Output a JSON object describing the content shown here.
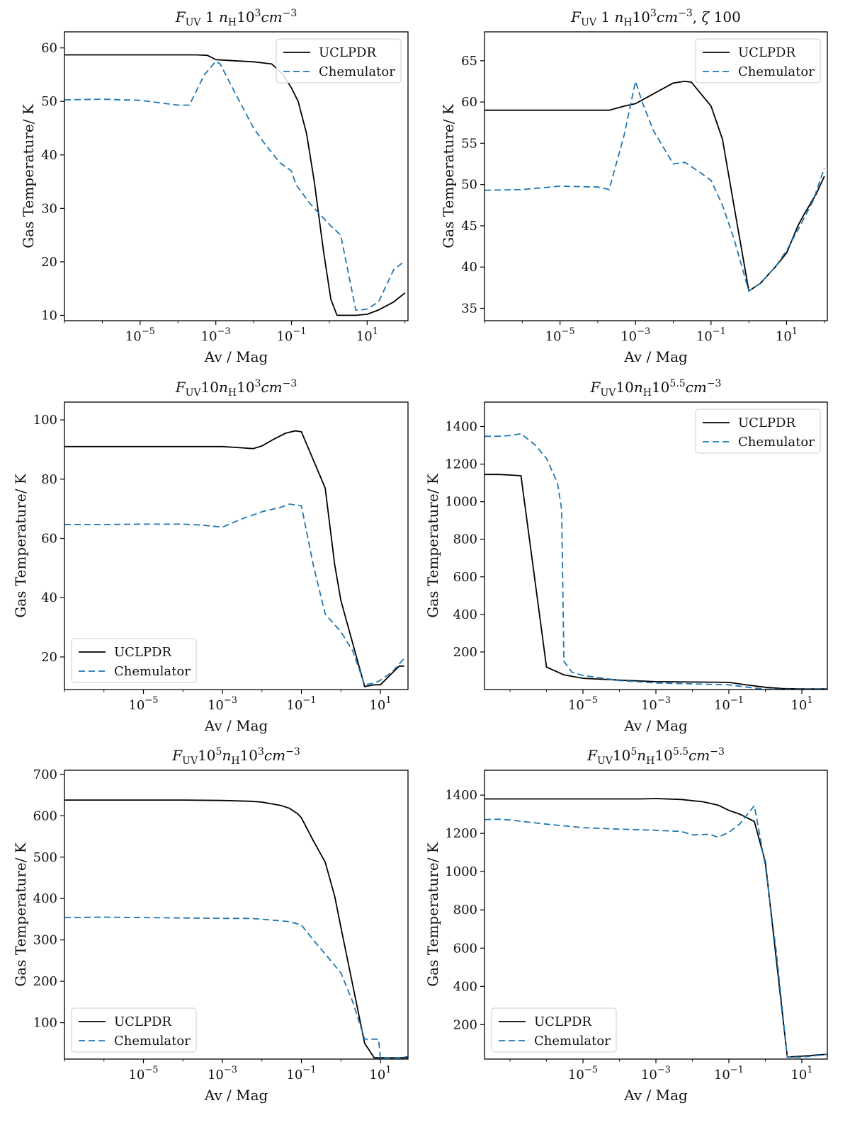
{
  "chart_data": [
    {
      "type": "line",
      "title_parts": [
        [
          "F",
          "i"
        ],
        [
          "UV",
          "sub"
        ],
        [
          " 1 ",
          "n"
        ],
        [
          "n",
          "i"
        ],
        [
          "H",
          "sub"
        ],
        [
          "10",
          "n"
        ],
        [
          "3",
          "sup"
        ],
        [
          "cm",
          "i"
        ],
        [
          "−3",
          "sup"
        ]
      ],
      "xlabel": "Av / Mag",
      "ylabel": "Gas Temperature/ K",
      "xscale": "log",
      "xlim": [
        1e-07,
        120
      ],
      "ylim": [
        9,
        63
      ],
      "xticks": [
        -5,
        -3,
        -1,
        1
      ],
      "yticks": [
        10,
        20,
        30,
        40,
        50,
        60
      ],
      "legend": "top-right",
      "series": [
        {
          "name": "UCLPDR",
          "x": [
            1e-07,
            1e-05,
            0.0001,
            0.0003,
            0.0006,
            0.001,
            0.003,
            0.01,
            0.03,
            0.06,
            0.1,
            0.15,
            0.25,
            0.4,
            0.7,
            1.1,
            1.6,
            2,
            5,
            10,
            20,
            50,
            100
          ],
          "y": [
            58.7,
            58.7,
            58.7,
            58.7,
            58.6,
            57.8,
            57.6,
            57.4,
            57,
            55,
            52.5,
            50,
            44,
            35,
            22,
            13,
            10,
            10,
            10,
            10.2,
            11,
            12.5,
            14.2
          ]
        },
        {
          "name": "Chemulator",
          "x": [
            1e-07,
            1e-06,
            1e-05,
            0.0001,
            0.0002,
            0.0005,
            0.001,
            0.0013,
            0.003,
            0.01,
            0.02,
            0.05,
            0.1,
            0.13,
            0.3,
            1,
            2,
            5,
            7,
            10,
            20,
            50,
            100
          ],
          "y": [
            50.3,
            50.4,
            50.2,
            49.3,
            49.3,
            55,
            57.5,
            57,
            52,
            45,
            42,
            38.5,
            37,
            34.5,
            31,
            27,
            25,
            11,
            11,
            11.2,
            12.5,
            18.5,
            20.2
          ]
        }
      ]
    },
    {
      "type": "line",
      "title_parts": [
        [
          "F",
          "i"
        ],
        [
          "UV",
          "sub"
        ],
        [
          " 1 ",
          "n"
        ],
        [
          "n",
          "i"
        ],
        [
          "H",
          "sub"
        ],
        [
          "10",
          "n"
        ],
        [
          "3",
          "sup"
        ],
        [
          "cm",
          "i"
        ],
        [
          "−3",
          "sup"
        ],
        [
          ", ",
          "n"
        ],
        [
          "ζ",
          "i"
        ],
        [
          " 100",
          "n"
        ]
      ],
      "xlabel": "Av / Mag",
      "ylabel": "Gas Temperature/ K",
      "xscale": "log",
      "xlim": [
        1e-07,
        120
      ],
      "ylim": [
        33.5,
        68.5
      ],
      "xticks": [
        -5,
        -3,
        -1,
        1
      ],
      "yticks": [
        35,
        40,
        45,
        50,
        55,
        60,
        65
      ],
      "legend": "top-right",
      "series": [
        {
          "name": "UCLPDR",
          "x": [
            1e-07,
            1e-05,
            0.0001,
            0.0002,
            0.0005,
            0.001,
            0.003,
            0.01,
            0.02,
            0.03,
            0.1,
            0.2,
            0.5,
            1,
            2,
            5,
            10,
            20,
            30,
            60,
            100
          ],
          "y": [
            59,
            59,
            59,
            59,
            59.5,
            59.8,
            61,
            62.3,
            62.5,
            62.4,
            59.5,
            55.5,
            45,
            37.1,
            38,
            40,
            41.7,
            45,
            46.5,
            48.8,
            51
          ]
        },
        {
          "name": "Chemulator",
          "x": [
            1e-07,
            1e-06,
            1e-05,
            0.0001,
            0.0002,
            0.0005,
            0.001,
            0.0015,
            0.003,
            0.01,
            0.02,
            0.05,
            0.1,
            0.2,
            0.4,
            1,
            2,
            5,
            10,
            20,
            50,
            100
          ],
          "y": [
            49.3,
            49.4,
            49.8,
            49.7,
            49.4,
            56,
            62.5,
            60,
            56.5,
            52.5,
            52.7,
            51.5,
            50.5,
            47.5,
            43.5,
            37.1,
            38,
            40,
            42,
            44.5,
            48,
            52
          ]
        }
      ]
    },
    {
      "type": "line",
      "title_parts": [
        [
          "F",
          "i"
        ],
        [
          "UV",
          "sub"
        ],
        [
          "10",
          "n"
        ],
        [
          "n",
          "i"
        ],
        [
          "H",
          "sub"
        ],
        [
          "10",
          "n"
        ],
        [
          "3",
          "sup"
        ],
        [
          "cm",
          "i"
        ],
        [
          "−3",
          "sup"
        ]
      ],
      "xlabel": "Av / Mag",
      "ylabel": "Gas Temperature/ K",
      "xscale": "log",
      "xlim": [
        1e-07,
        50
      ],
      "ylim": [
        9,
        106
      ],
      "xticks": [
        -5,
        -3,
        -1,
        1
      ],
      "yticks": [
        20,
        40,
        60,
        80,
        100
      ],
      "legend": "bottom-left",
      "series": [
        {
          "name": "UCLPDR",
          "x": [
            1e-07,
            1e-05,
            0.0001,
            0.001,
            0.003,
            0.006,
            0.01,
            0.02,
            0.04,
            0.07,
            0.1,
            0.2,
            0.4,
            0.7,
            1,
            4,
            7,
            10,
            30,
            40
          ],
          "y": [
            91,
            91,
            91,
            91,
            90.6,
            90.3,
            91.2,
            93.5,
            95.5,
            96.3,
            96,
            86.5,
            77,
            51,
            39,
            10,
            10.6,
            10.6,
            16.9,
            16.9
          ]
        },
        {
          "name": "Chemulator",
          "x": [
            1e-07,
            1e-06,
            1e-05,
            0.0001,
            0.0003,
            0.001,
            0.003,
            0.01,
            0.03,
            0.05,
            0.1,
            0.2,
            0.4,
            1,
            2,
            4,
            7,
            10,
            20,
            40
          ],
          "y": [
            64.7,
            64.7,
            64.8,
            64.8,
            64.5,
            63.8,
            66.5,
            69,
            70.5,
            71.6,
            71,
            51,
            34.5,
            28.5,
            22,
            10.6,
            11.2,
            12.1,
            15,
            19.5
          ]
        }
      ]
    },
    {
      "type": "line",
      "title_parts": [
        [
          "F",
          "i"
        ],
        [
          "UV",
          "sub"
        ],
        [
          "10",
          "n"
        ],
        [
          "n",
          "i"
        ],
        [
          "H",
          "sub"
        ],
        [
          "10",
          "n"
        ],
        [
          "5.5",
          "sup"
        ],
        [
          "cm",
          "i"
        ],
        [
          "−3",
          "sup"
        ]
      ],
      "xlabel": "Av / Mag",
      "ylabel": "Gas Temperature/ K",
      "xscale": "log",
      "xlim": [
        2e-08,
        50
      ],
      "ylim": [
        0,
        1530
      ],
      "xticks": [
        -5,
        -3,
        -1,
        1
      ],
      "yticks": [
        200,
        400,
        600,
        800,
        1000,
        1200,
        1400
      ],
      "legend": "top-right",
      "series": [
        {
          "name": "UCLPDR",
          "x": [
            2e-08,
            5e-08,
            1e-07,
            2e-07,
            4e-07,
            1e-06,
            3e-06,
            1e-05,
            0.0001,
            0.001,
            0.01,
            0.1,
            0.3,
            1,
            3,
            10,
            50
          ],
          "y": [
            1145,
            1145,
            1142,
            1138,
            700,
            120,
            78,
            60,
            50,
            42,
            40,
            38,
            25,
            12,
            5,
            3,
            3
          ]
        },
        {
          "name": "Chemulator",
          "x": [
            2e-08,
            5e-08,
            1e-07,
            2e-07,
            5e-07,
            1e-06,
            2e-06,
            2.6e-06,
            3e-06,
            5e-06,
            1e-05,
            0.0001,
            0.001,
            0.01,
            0.1,
            0.5,
            1,
            3,
            10,
            50
          ],
          "y": [
            1348,
            1348,
            1352,
            1362,
            1300,
            1230,
            1100,
            960,
            150,
            92,
            75,
            48,
            35,
            30,
            25,
            8,
            2,
            2,
            2,
            2
          ]
        }
      ]
    },
    {
      "type": "line",
      "title_parts": [
        [
          "F",
          "i"
        ],
        [
          "UV",
          "sub"
        ],
        [
          "10",
          "n"
        ],
        [
          "5",
          "sup"
        ],
        [
          "n",
          "i"
        ],
        [
          "H",
          "sub"
        ],
        [
          "10",
          "n"
        ],
        [
          "3",
          "sup"
        ],
        [
          "cm",
          "i"
        ],
        [
          "−3",
          "sup"
        ]
      ],
      "xlabel": "Av / Mag",
      "ylabel": "Gas Temperature/ K",
      "xscale": "log",
      "xlim": [
        1e-07,
        50
      ],
      "ylim": [
        12,
        710
      ],
      "xticks": [
        -5,
        -3,
        -1,
        1
      ],
      "yticks": [
        100,
        200,
        300,
        400,
        500,
        600,
        700
      ],
      "legend": "bottom-left",
      "series": [
        {
          "name": "UCLPDR",
          "x": [
            1e-07,
            1e-05,
            0.0001,
            0.001,
            0.005,
            0.01,
            0.03,
            0.05,
            0.08,
            0.1,
            0.2,
            0.4,
            0.7,
            1,
            2,
            4,
            7,
            10,
            20,
            50
          ],
          "y": [
            638,
            638,
            638,
            637,
            635,
            633,
            625,
            618,
            605,
            595,
            540,
            488,
            405,
            330,
            190,
            50,
            15,
            15,
            15,
            15
          ]
        },
        {
          "name": "Chemulator",
          "x": [
            1e-07,
            1e-06,
            1e-05,
            0.0001,
            0.001,
            0.005,
            0.01,
            0.03,
            0.05,
            0.1,
            0.2,
            0.5,
            1,
            2,
            4,
            7,
            9,
            10,
            30,
            50
          ],
          "y": [
            354,
            355,
            354,
            353,
            352,
            352,
            350,
            346,
            344,
            336,
            300,
            255,
            220,
            150,
            60,
            60,
            60,
            15,
            15,
            18
          ]
        }
      ]
    },
    {
      "type": "line",
      "title_parts": [
        [
          "F",
          "i"
        ],
        [
          "UV",
          "sub"
        ],
        [
          "10",
          "n"
        ],
        [
          "5",
          "sup"
        ],
        [
          "n",
          "i"
        ],
        [
          "H",
          "sub"
        ],
        [
          "10",
          "n"
        ],
        [
          "5.5",
          "sup"
        ],
        [
          "cm",
          "i"
        ],
        [
          "−3",
          "sup"
        ]
      ],
      "xlabel": "Av / Mag",
      "ylabel": "Gas Temperature/ K",
      "xscale": "log",
      "xlim": [
        2e-08,
        50
      ],
      "ylim": [
        20,
        1530
      ],
      "xticks": [
        -5,
        -3,
        -1,
        1
      ],
      "yticks": [
        200,
        400,
        600,
        800,
        1000,
        1200,
        1400
      ],
      "legend": "bottom-left",
      "series": [
        {
          "name": "UCLPDR",
          "x": [
            2e-08,
            1e-06,
            1e-05,
            0.0001,
            0.0004,
            0.001,
            0.005,
            0.02,
            0.05,
            0.1,
            0.2,
            0.5,
            1,
            2,
            4,
            10,
            50
          ],
          "y": [
            1380,
            1380,
            1380,
            1380,
            1380,
            1382,
            1377,
            1365,
            1348,
            1320,
            1300,
            1262,
            1050,
            540,
            30,
            35,
            45
          ]
        },
        {
          "name": "Chemulator",
          "x": [
            2e-08,
            5e-08,
            1e-07,
            1e-06,
            1e-05,
            0.0001,
            0.001,
            0.005,
            0.01,
            0.03,
            0.05,
            0.1,
            0.2,
            0.5,
            1,
            2,
            4,
            10,
            30,
            50
          ],
          "y": [
            1272,
            1274,
            1270,
            1248,
            1230,
            1222,
            1216,
            1210,
            1192,
            1195,
            1180,
            1205,
            1250,
            1345,
            1030,
            580,
            30,
            30,
            40,
            45
          ]
        }
      ]
    }
  ]
}
